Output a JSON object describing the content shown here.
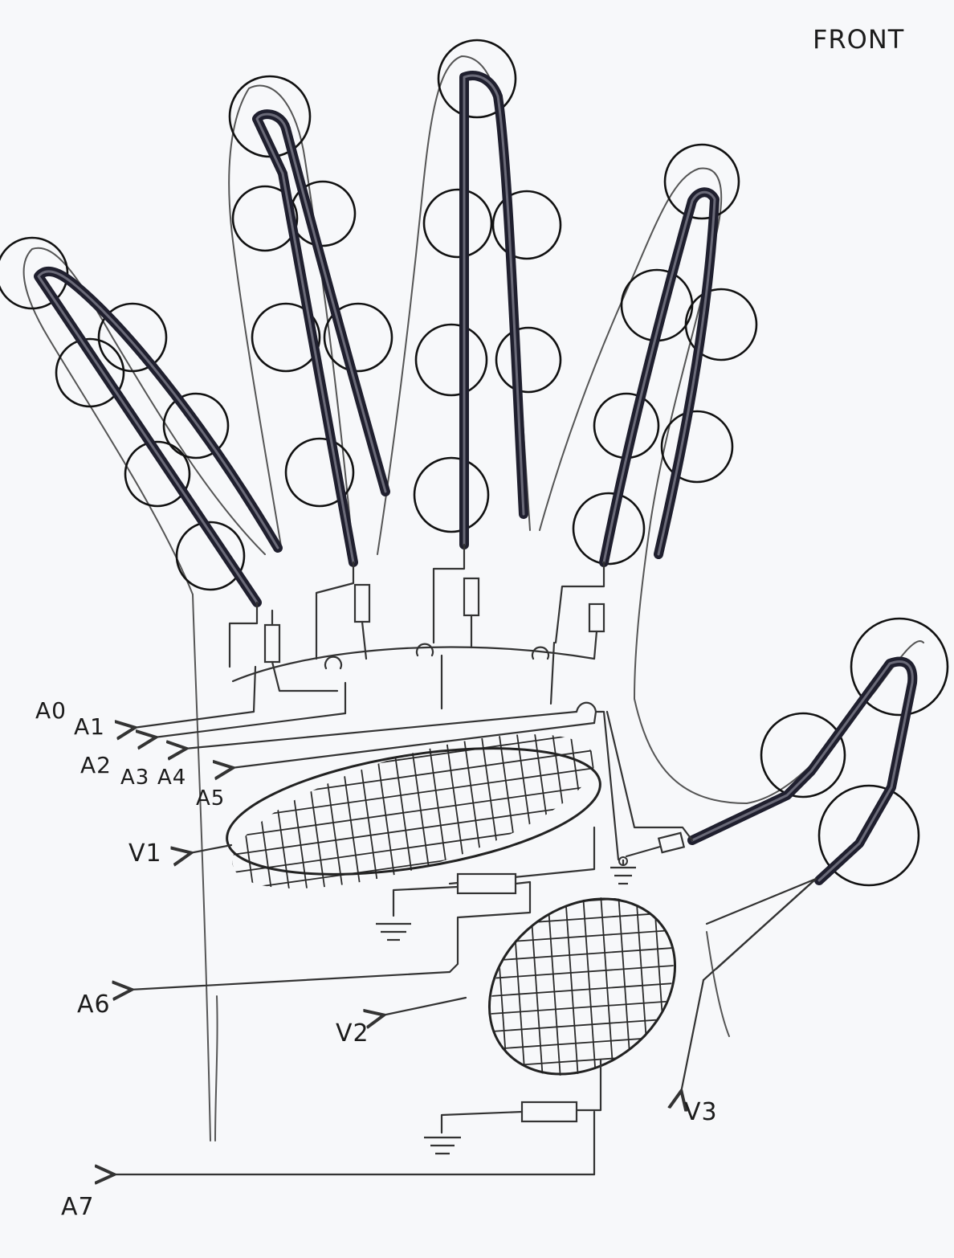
{
  "view_label": "FRONT",
  "analog_outputs": [
    "A0",
    "A1",
    "A2",
    "A3",
    "A4",
    "A5",
    "A6",
    "A7"
  ],
  "sensor_outputs": [
    "V1",
    "V2",
    "V3"
  ],
  "colors": {
    "ink": "#1c1c1c",
    "flex_sensor": "#1f1f2e",
    "paper": "#f7f8fa"
  },
  "icons": [
    "ground-icon",
    "resistor-icon",
    "arrow-left-icon"
  ]
}
